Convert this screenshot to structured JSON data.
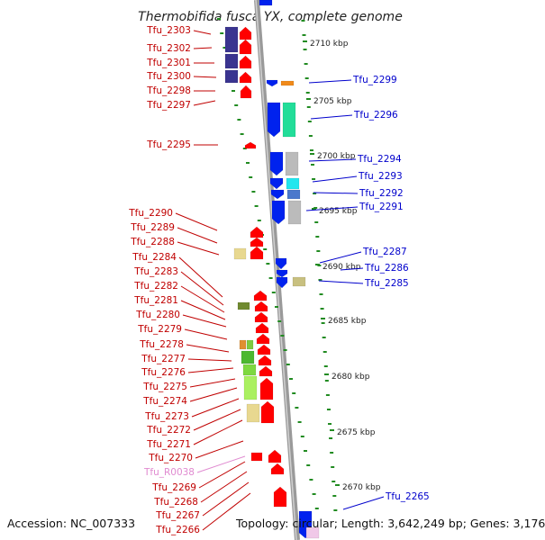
{
  "title": "Thermobifida fusca YX, complete genome",
  "accession": "Accession: NC_007333",
  "topology": "Topology: circular; Length: 3,642,249 bp; Genes: 3,176",
  "colors": {
    "left_label": "#c00000",
    "right_label": "#0000cc",
    "rna_label": "#e08ad0",
    "forward_gene": "#ff0000",
    "reverse_gene": "#0022ee",
    "backbone": "#9a9a9a",
    "tick": "#228b22"
  },
  "scale": [
    {
      "label": "2710 kbp"
    },
    {
      "label": "2705 kbp"
    },
    {
      "label": "2700 kbp"
    },
    {
      "label": "2695 kbp"
    },
    {
      "label": "2690 kbp"
    },
    {
      "label": "2685 kbp"
    },
    {
      "label": "2680 kbp"
    },
    {
      "label": "2675 kbp"
    },
    {
      "label": "2670 kbp"
    }
  ],
  "left_genes": [
    {
      "label": "Tfu_2303"
    },
    {
      "label": "Tfu_2302"
    },
    {
      "label": "Tfu_2301"
    },
    {
      "label": "Tfu_2300"
    },
    {
      "label": "Tfu_2298"
    },
    {
      "label": "Tfu_2297"
    },
    {
      "label": "Tfu_2295"
    },
    {
      "label": "Tfu_2290"
    },
    {
      "label": "Tfu_2289"
    },
    {
      "label": "Tfu_2288"
    },
    {
      "label": "Tfu_2284"
    },
    {
      "label": "Tfu_2283"
    },
    {
      "label": "Tfu_2282"
    },
    {
      "label": "Tfu_2281"
    },
    {
      "label": "Tfu_2280"
    },
    {
      "label": "Tfu_2279"
    },
    {
      "label": "Tfu_2278"
    },
    {
      "label": "Tfu_2277"
    },
    {
      "label": "Tfu_2276"
    },
    {
      "label": "Tfu_2275"
    },
    {
      "label": "Tfu_2274"
    },
    {
      "label": "Tfu_2273"
    },
    {
      "label": "Tfu_2272"
    },
    {
      "label": "Tfu_2271"
    },
    {
      "label": "Tfu_2270"
    },
    {
      "label": "Tfu_R0038",
      "rna": true
    },
    {
      "label": "Tfu_2269"
    },
    {
      "label": "Tfu_2268"
    },
    {
      "label": "Tfu_2267"
    },
    {
      "label": "Tfu_2266"
    }
  ],
  "right_genes": [
    {
      "label": "Tfu_2299"
    },
    {
      "label": "Tfu_2296"
    },
    {
      "label": "Tfu_2294"
    },
    {
      "label": "Tfu_2293"
    },
    {
      "label": "Tfu_2292"
    },
    {
      "label": "Tfu_2291"
    },
    {
      "label": "Tfu_2287"
    },
    {
      "label": "Tfu_2286"
    },
    {
      "label": "Tfu_2285"
    },
    {
      "label": "Tfu_2265"
    }
  ]
}
